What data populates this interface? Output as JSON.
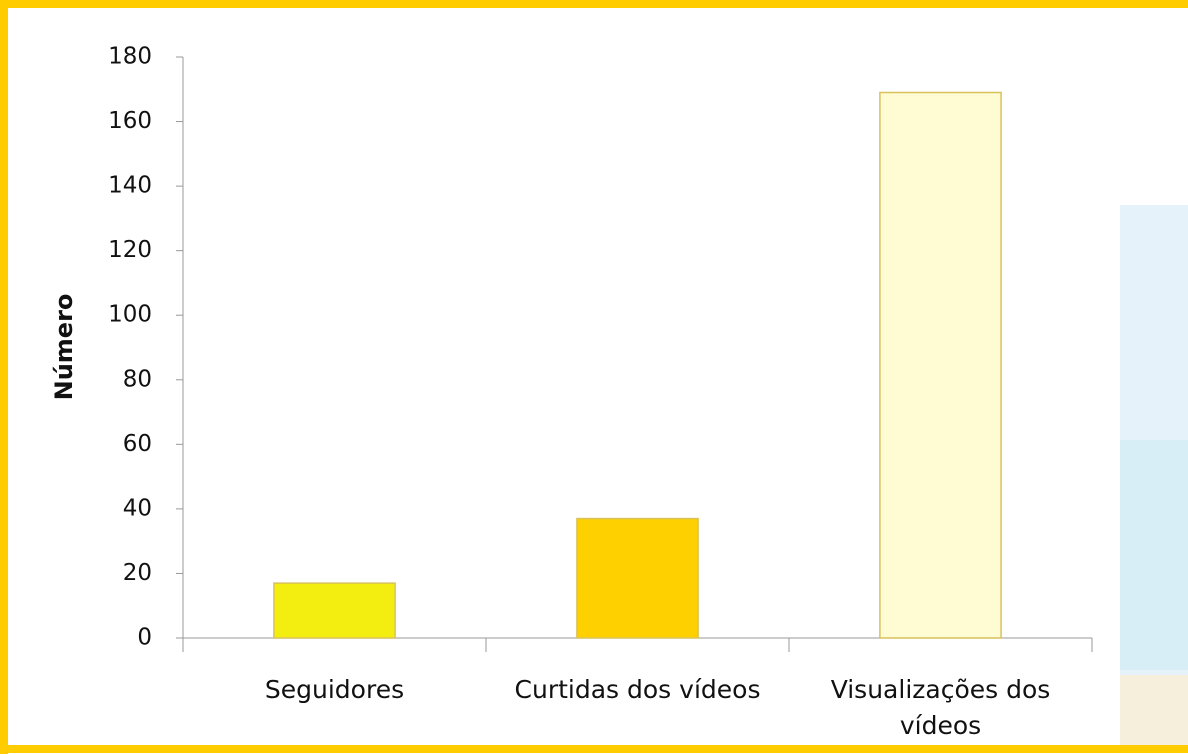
{
  "chart_data": {
    "type": "bar",
    "ylabel": "Número",
    "categories": [
      "Seguidores",
      "Curtidas dos vídeos",
      "Visualizações dos vídeos"
    ],
    "values": [
      17,
      37,
      169
    ],
    "colors": [
      "#f4ee10",
      "#ffd000",
      "#fffbd2"
    ],
    "ylim": [
      0,
      180
    ],
    "yticks": [
      0,
      20,
      40,
      60,
      80,
      100,
      120,
      140,
      160,
      180
    ],
    "grid": false
  }
}
